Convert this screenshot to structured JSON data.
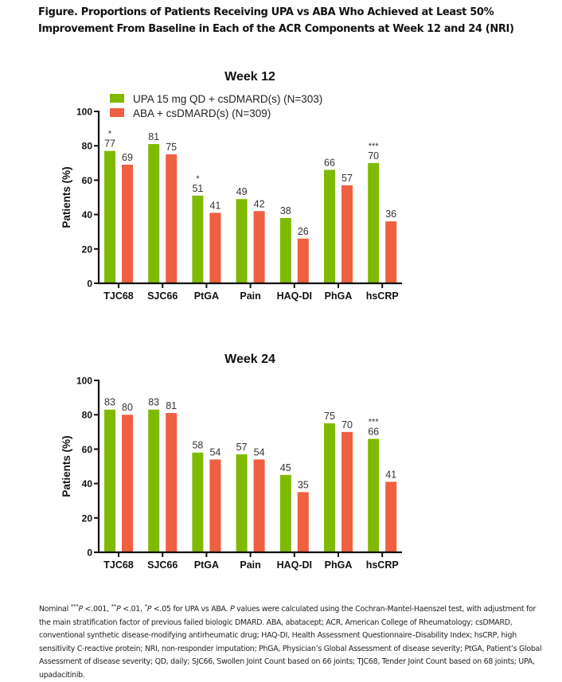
{
  "figure": {
    "title": "Figure. Proportions of Patients Receiving UPA vs ABA Who Achieved at Least 50% Improvement From Baseline in Each of the ACR Components at Week 12 and 24 (NRI)",
    "footnote_parts": {
      "p1": "Nominal ",
      "sig3": "***",
      "p_italic1": "P",
      "p2": " <.001, ",
      "sig2": "**",
      "p_italic2": "P",
      "p3": " <.01, ",
      "sig1": "*",
      "p_italic3": "P",
      "p4": " <.05 for UPA vs ABA. ",
      "p_italic4": "P",
      "p5": " values were calculated using the Cochran-Mantel-Haenszel test, with adjustment for the main stratification factor of previous failed biologic DMARD. ABA, abatacept; ACR, American College of Rheumatology; csDMARD, conventional synthetic disease-modifying antirheumatic drug; HAQ-DI, Health Assessment Questionnaire–Disability Index; hsCRP, high sensitivity C-reactive protein; NRI, non-responder imputation; PhGA, Physician’s Global Assessment of disease severity; PtGA, Patient’s Global Assessment of disease severity; QD, daily; SJC66, Swollen Joint Count based on 66 joints; TJC68, Tender Joint Count based on 68 joints; UPA, upadacitinib."
    }
  },
  "colors": {
    "upa": "#7fba00",
    "aba": "#f05f3f",
    "axis": "#111111"
  },
  "chart_data": [
    {
      "type": "bar",
      "title": "Week 12",
      "xlabel": "",
      "ylabel": "Patients (%)",
      "ylim": [
        0,
        100
      ],
      "yticks": [
        "0",
        "20",
        "40",
        "60",
        "80",
        "100"
      ],
      "grid": false,
      "legend_position": "top",
      "categories": [
        "TJC68",
        "SJC66",
        "PtGA",
        "Pain",
        "HAQ-DI",
        "PhGA",
        "hsCRP"
      ],
      "series": [
        {
          "name": "UPA 15 mg QD + csDMARD(s) (N=303)",
          "values": [
            77,
            81,
            51,
            49,
            38,
            66,
            70
          ],
          "significance": [
            "*",
            "",
            "*",
            "",
            "",
            "",
            "***"
          ]
        },
        {
          "name": "ABA + csDMARD(s) (N=309)",
          "values": [
            69,
            75,
            41,
            42,
            26,
            57,
            36
          ]
        }
      ]
    },
    {
      "type": "bar",
      "title": "Week 24",
      "xlabel": "",
      "ylabel": "Patients (%)",
      "ylim": [
        0,
        100
      ],
      "yticks": [
        "0",
        "20",
        "40",
        "60",
        "80",
        "100"
      ],
      "grid": false,
      "categories": [
        "TJC68",
        "SJC66",
        "PtGA",
        "Pain",
        "HAQ-DI",
        "PhGA",
        "hsCRP"
      ],
      "series": [
        {
          "name": "UPA 15 mg QD + csDMARD(s) (N=303)",
          "values": [
            83,
            83,
            58,
            57,
            45,
            75,
            66
          ],
          "significance": [
            "",
            "",
            "",
            "",
            "",
            "",
            "***"
          ]
        },
        {
          "name": "ABA + csDMARD(s) (N=309)",
          "values": [
            80,
            81,
            54,
            54,
            35,
            70,
            41
          ]
        }
      ]
    }
  ]
}
